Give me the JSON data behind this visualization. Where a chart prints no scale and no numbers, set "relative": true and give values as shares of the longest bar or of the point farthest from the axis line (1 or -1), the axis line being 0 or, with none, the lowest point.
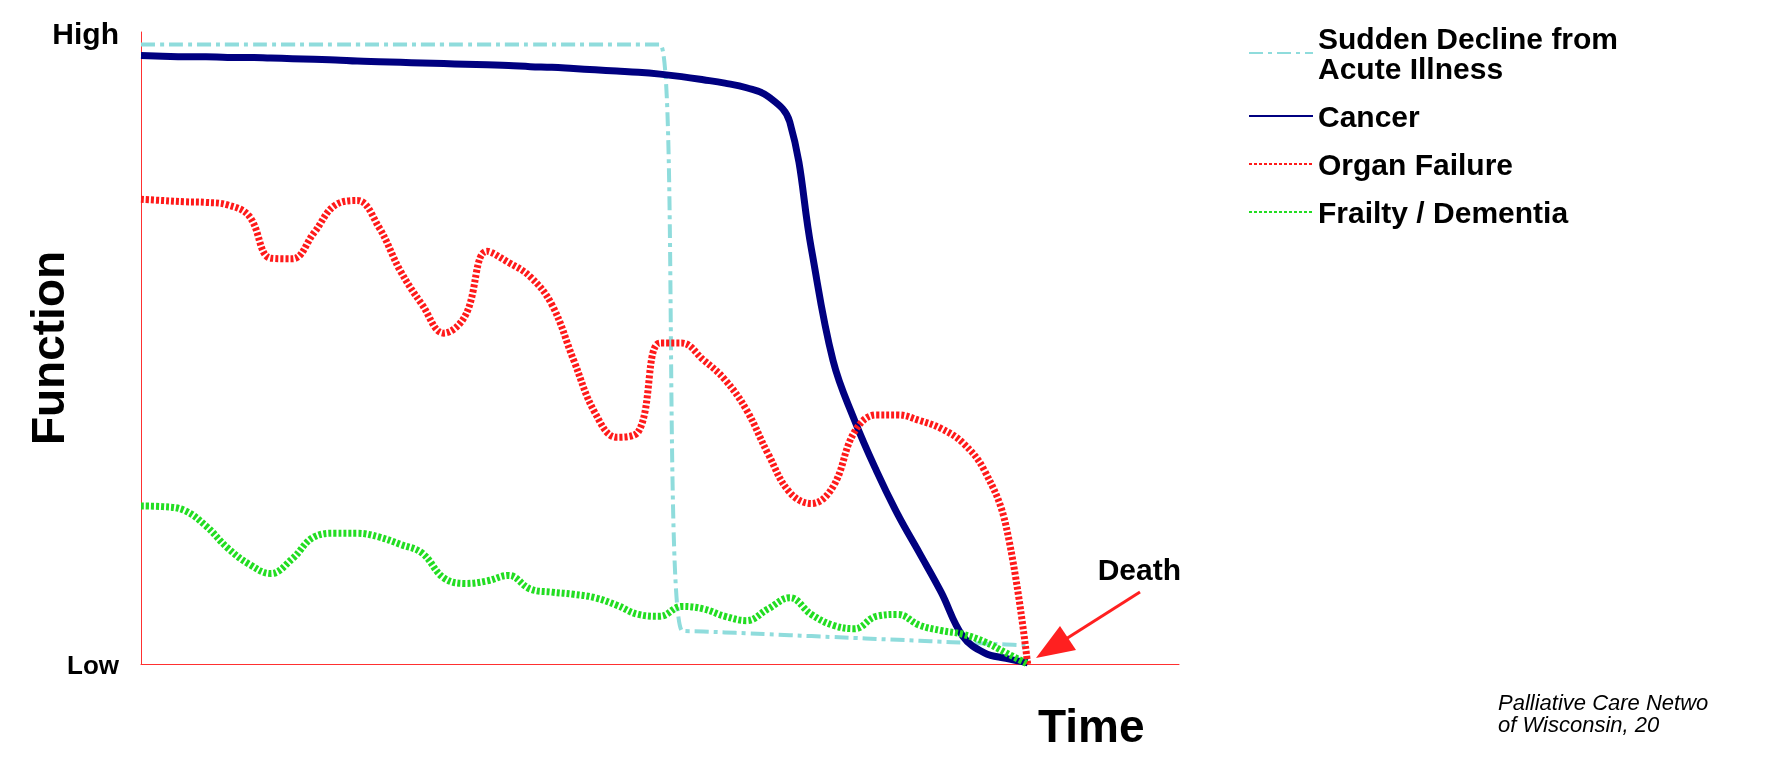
{
  "chart_data": {
    "type": "line",
    "relative": true,
    "xlabel": "Time",
    "ylabel": "Function",
    "legend": "top right",
    "marker": "none",
    "grid": false,
    "categories": [
      null,
      null,
      null,
      null,
      null,
      null,
      null,
      null,
      null,
      null,
      null,
      null,
      null,
      null,
      null,
      null,
      null,
      null,
      null,
      null,
      null,
      null,
      null,
      null,
      null,
      null,
      null,
      null,
      null,
      null,
      null,
      null,
      null,
      null,
      null,
      null,
      null,
      null,
      null,
      null,
      null,
      null,
      null,
      null,
      null,
      null,
      null,
      null,
      null
    ],
    "annotations": [
      "High",
      "Low",
      "Death",
      "Palliative Care Netwo\nof Wisconsin, 20"
    ],
    "series": [
      {
        "name": "Sudden Decline from Acute Illness",
        "color": "#8fdcdc",
        "line_style": "dashed",
        "values": [
          1,
          1,
          1,
          1,
          1,
          1,
          1,
          1,
          1,
          1,
          1,
          1,
          1,
          1,
          1,
          1,
          1,
          1,
          1,
          1,
          1,
          1,
          1,
          1,
          1,
          0.054,
          0.0525,
          0.051,
          0.0495,
          0.048,
          0.0465,
          0.045,
          0.0435,
          0.042,
          0.0405,
          0.039,
          0.0375,
          0.036,
          0.0345,
          0.033,
          0.0315,
          0.03,
          null,
          null,
          null,
          null,
          null,
          null,
          null
        ]
      },
      {
        "name": "Cancer",
        "color": "#000080",
        "line_style": "solid",
        "values": [
          0.982,
          0.981,
          0.98,
          0.98,
          0.979,
          0.979,
          0.978,
          0.977,
          0.976,
          0.975,
          0.973,
          0.972,
          0.971,
          0.97,
          0.969,
          0.968,
          0.967,
          0.966,
          0.964,
          0.963,
          0.961,
          0.959,
          0.957,
          0.955,
          0.952,
          0.948,
          0.943,
          0.9375,
          0.93,
          0.916,
          0.875,
          0.67,
          0.49,
          0.393,
          0.3125,
          0.241,
          0.179,
          0.116,
          0.045,
          0.018,
          0.009,
          0.002,
          null,
          null,
          null,
          null,
          null,
          null,
          null
        ]
      },
      {
        "name": "Organ Failure",
        "color": "#ff1a1a",
        "line_style": "dotted",
        "values": [
          0.75,
          0.748,
          0.746,
          0.745,
          0.741,
          0.723,
          0.655,
          0.654,
          0.696,
          0.741,
          0.748,
          0.705,
          0.634,
          0.58,
          0.534,
          0.5625,
          0.666,
          0.648,
          0.625,
          0.58,
          0.491,
          0.405,
          0.366,
          0.375,
          0.518,
          0.518,
          0.491,
          0.459,
          0.41,
          0.339,
          0.277,
          0.259,
          0.286,
          0.375,
          0.402,
          0.402,
          0.393,
          0.38,
          0.357,
          0.3125,
          0.223,
          0,
          null,
          null,
          null,
          null,
          null,
          null,
          null
        ]
      },
      {
        "name": "Frailty / Dementia",
        "color": "#22dd22",
        "line_style": "dotted",
        "values": [
          0.255,
          0.254,
          0.248,
          0.223,
          0.1875,
          0.161,
          0.146,
          0.17,
          0.205,
          0.211,
          0.211,
          0.205,
          0.193,
          0.179,
          0.139,
          0.13,
          0.134,
          0.143,
          0.121,
          0.116,
          0.1125,
          0.107,
          0.095,
          0.08,
          0.077,
          0.093,
          0.089,
          0.077,
          0.07,
          0.089,
          0.107,
          0.08,
          0.0625,
          0.057,
          0.077,
          0.08,
          0.0625,
          0.054,
          0.048,
          0.036,
          0.018,
          0,
          null,
          null,
          null,
          null,
          null,
          null,
          null
        ]
      }
    ]
  }
}
